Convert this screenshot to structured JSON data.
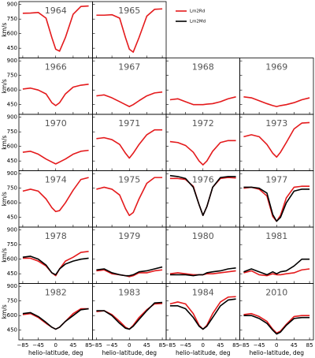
{
  "chart_data": {
    "type": "line",
    "x_label": "helio–latitude, deg",
    "y_label": "km/s",
    "x": [
      -85,
      -65,
      -45,
      -25,
      -10,
      0,
      10,
      25,
      45,
      65,
      85
    ],
    "xlim": [
      -95,
      95
    ],
    "xticks": [
      {
        "value": -85,
        "label": "−85"
      },
      {
        "value": -45,
        "label": "−45"
      },
      0,
      45,
      85
    ],
    "ylim": [
      350,
      930
    ],
    "yticks": [
      450,
      600,
      750,
      900
    ],
    "series": [
      {
        "name": "Lm2Rd",
        "color": "#e41a1c"
      },
      {
        "name": "Lm2Md",
        "color": "#000000"
      }
    ],
    "panels": [
      {
        "title": "1964",
        "values": [
          [
            810,
            812,
            818,
            760,
            560,
            440,
            420,
            560,
            800,
            880,
            885
          ]
        ]
      },
      {
        "title": "1965",
        "values": [
          [
            790,
            790,
            795,
            760,
            560,
            440,
            410,
            560,
            780,
            850,
            855
          ]
        ]
      },
      {
        "title": "1966",
        "values": [
          [
            610,
            620,
            600,
            560,
            470,
            440,
            470,
            560,
            630,
            650,
            660
          ]
        ]
      },
      {
        "title": "1967",
        "values": [
          [
            540,
            550,
            520,
            480,
            450,
            430,
            450,
            490,
            540,
            570,
            580
          ]
        ]
      },
      {
        "title": "1968",
        "values": [
          [
            500,
            510,
            480,
            450,
            450,
            450,
            455,
            460,
            480,
            510,
            530
          ]
        ]
      },
      {
        "title": "1969",
        "values": [
          [
            530,
            520,
            490,
            460,
            440,
            430,
            440,
            450,
            470,
            500,
            520
          ]
        ]
      },
      {
        "title": "1970",
        "values": [
          [
            540,
            550,
            520,
            470,
            440,
            420,
            440,
            470,
            520,
            550,
            560
          ]
        ]
      },
      {
        "title": "1971",
        "values": [
          [
            680,
            690,
            670,
            620,
            530,
            480,
            530,
            620,
            720,
            770,
            770
          ]
        ]
      },
      {
        "title": "1972",
        "values": [
          [
            650,
            640,
            610,
            540,
            450,
            410,
            450,
            550,
            640,
            660,
            660
          ]
        ]
      },
      {
        "title": "1973",
        "values": [
          [
            700,
            720,
            700,
            620,
            530,
            490,
            540,
            640,
            780,
            840,
            845
          ]
        ]
      },
      {
        "title": "1974",
        "values": [
          [
            720,
            740,
            720,
            640,
            550,
            510,
            520,
            600,
            730,
            840,
            860
          ]
        ]
      },
      {
        "title": "1975",
        "values": [
          [
            740,
            760,
            740,
            680,
            540,
            470,
            500,
            640,
            800,
            860,
            860
          ]
        ]
      },
      {
        "title": "1976",
        "values": [
          [
            850,
            850,
            840,
            770,
            580,
            470,
            560,
            760,
            850,
            860,
            855
          ],
          [
            880,
            870,
            850,
            760,
            580,
            470,
            560,
            760,
            860,
            870,
            870
          ]
        ]
      },
      {
        "title": "1977",
        "values": [
          [
            750,
            760,
            740,
            670,
            460,
            410,
            470,
            650,
            760,
            770,
            770
          ],
          [
            760,
            760,
            750,
            700,
            480,
            410,
            450,
            600,
            720,
            740,
            740
          ]
        ]
      },
      {
        "title": "1978",
        "values": [
          [
            610,
            610,
            580,
            530,
            460,
            430,
            500,
            580,
            620,
            670,
            680
          ],
          [
            620,
            630,
            600,
            540,
            460,
            440,
            500,
            550,
            580,
            600,
            610
          ]
        ]
      },
      {
        "title": "1979",
        "values": [
          [
            480,
            490,
            450,
            440,
            430,
            420,
            430,
            460,
            460,
            480,
            490
          ],
          [
            490,
            500,
            460,
            440,
            430,
            430,
            440,
            470,
            480,
            500,
            520
          ]
        ]
      },
      {
        "title": "1980",
        "values": [
          [
            450,
            460,
            450,
            440,
            440,
            440,
            450,
            450,
            460,
            470,
            480
          ],
          [
            440,
            440,
            440,
            430,
            440,
            440,
            460,
            470,
            480,
            500,
            510
          ]
        ]
      },
      {
        "title": "1981",
        "values": [
          [
            460,
            480,
            440,
            430,
            450,
            440,
            440,
            450,
            460,
            490,
            500
          ],
          [
            470,
            500,
            470,
            440,
            470,
            450,
            470,
            480,
            530,
            600,
            600
          ]
        ]
      },
      {
        "title": "1982",
        "values": [
          [
            610,
            620,
            580,
            520,
            480,
            460,
            480,
            540,
            620,
            670,
            670
          ],
          [
            620,
            630,
            590,
            530,
            480,
            460,
            480,
            540,
            600,
            660,
            670
          ]
        ]
      },
      {
        "title": "1983",
        "values": [
          [
            640,
            650,
            610,
            540,
            480,
            460,
            500,
            580,
            660,
            720,
            725
          ],
          [
            650,
            650,
            600,
            520,
            470,
            460,
            490,
            560,
            650,
            730,
            735
          ]
        ]
      },
      {
        "title": "1984",
        "values": [
          [
            720,
            740,
            720,
            620,
            500,
            460,
            500,
            620,
            740,
            790,
            795
          ],
          [
            700,
            700,
            670,
            580,
            490,
            460,
            490,
            580,
            700,
            760,
            770
          ]
        ]
      },
      {
        "title": "2010",
        "values": [
          [
            610,
            620,
            590,
            540,
            460,
            420,
            440,
            510,
            590,
            600,
            600
          ],
          [
            600,
            600,
            570,
            520,
            450,
            410,
            430,
            500,
            570,
            580,
            580
          ]
        ]
      }
    ]
  }
}
